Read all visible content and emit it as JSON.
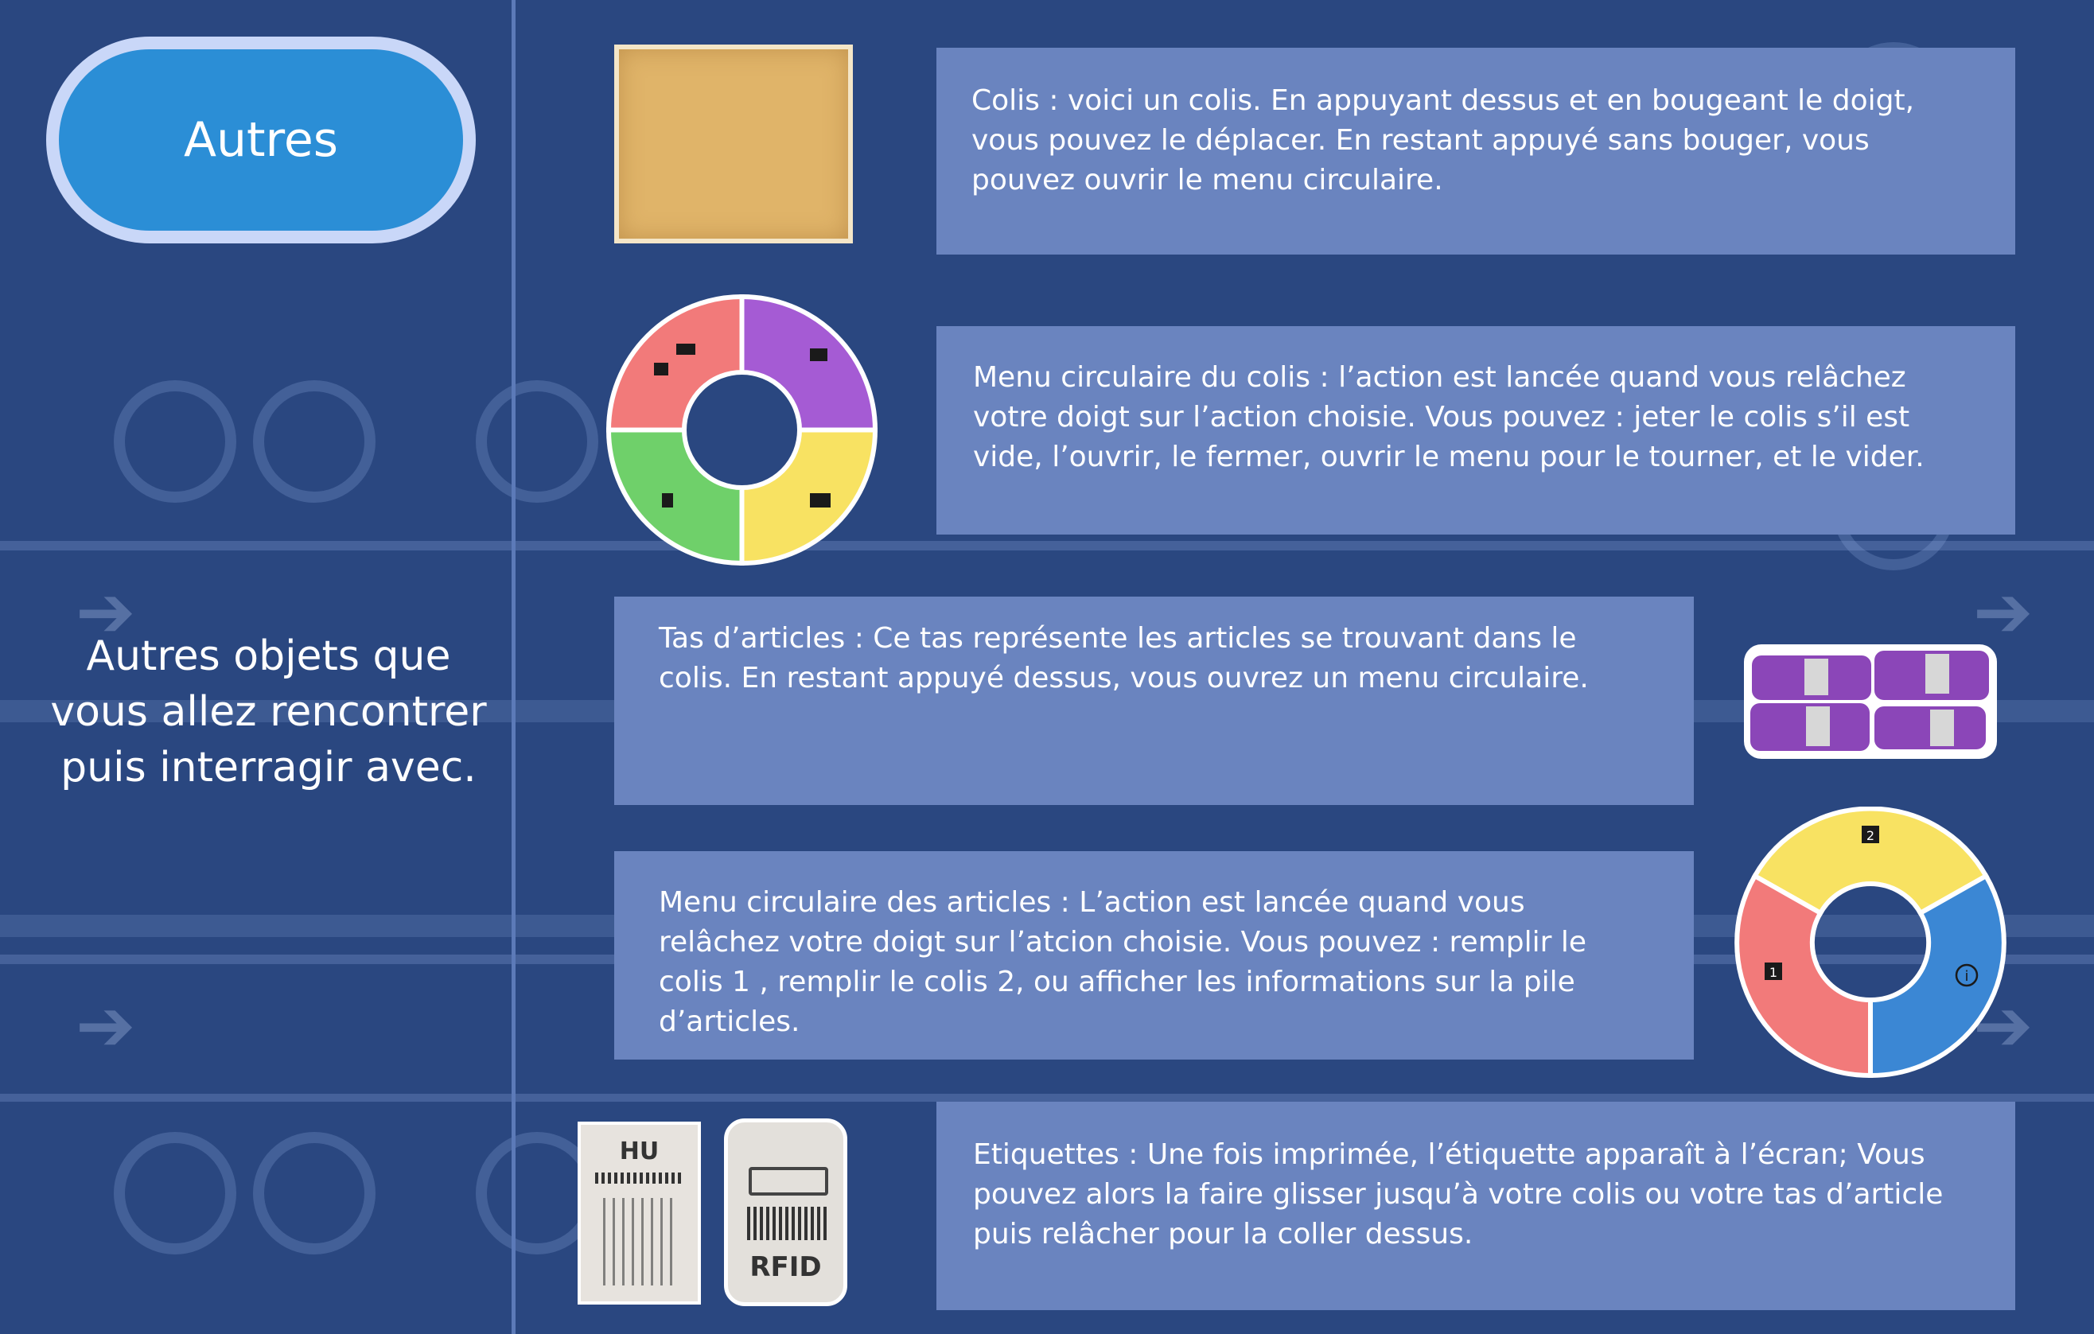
{
  "sidebar": {
    "title_button": "Autres",
    "subtitle": "Autres objets que vous allez rencontrer puis interragir avec."
  },
  "items": [
    {
      "name": "colis",
      "description": "Colis : voici un colis. En appuyant dessus et en bougeant le doigt, vous pouvez le déplacer. En restant appuyé sans bouger, vous pouvez ouvrir le menu circulaire."
    },
    {
      "name": "menu-colis",
      "description": "Menu circulaire du colis : l’action est lancée quand vous relâchez votre doigt sur l’action choisie. Vous pouvez : jeter le colis s’il est vide, l’ouvrir, le fermer, ouvrir le menu pour le tourner, et le vider."
    },
    {
      "name": "tas-articles",
      "description": "Tas d’articles : Ce tas représente les articles se trouvant dans le colis. En restant appuyé dessus, vous ouvrez un menu circulaire."
    },
    {
      "name": "menu-articles",
      "description": "Menu circulaire des articles : L’action est lancée quand vous relâchez votre doigt sur l’atcion choisie. Vous pouvez : remplir le colis 1 , remplir le colis 2, ou afficher les informations sur la pile d’articles."
    },
    {
      "name": "etiquettes",
      "description": "Etiquettes : Une fois imprimée, l’étiquette apparaît à l’écran; Vous pouvez alors la faire glisser jusqu’à votre colis ou votre tas d’article puis relâcher pour la coller dessus."
    }
  ],
  "labels": {
    "hu_label": "HU",
    "rfid_label": "RFID",
    "menu_articles_slot_1": "1",
    "menu_articles_slot_2": "2",
    "menu_articles_info": "i"
  },
  "colors": {
    "background": "#2a4780",
    "panel": "#6a84bf",
    "pill": "#2b8ed6",
    "pill_border": "#c9d7f8",
    "wheel_red": "#f27a7a",
    "wheel_purple": "#a55bd4",
    "wheel_green": "#6fd06a",
    "wheel_yellow": "#f8e262",
    "wheel_blue": "#3b87d4",
    "box": "#e0b469",
    "articles_purple": "#8b46b8"
  },
  "icons": [
    "colis-box-icon",
    "jeter-icon",
    "ouvrir-icon",
    "fermer-icon",
    "tourner-icon",
    "vider-icon",
    "remplir-1-icon",
    "remplir-2-icon",
    "info-icon",
    "barcode-icon"
  ]
}
